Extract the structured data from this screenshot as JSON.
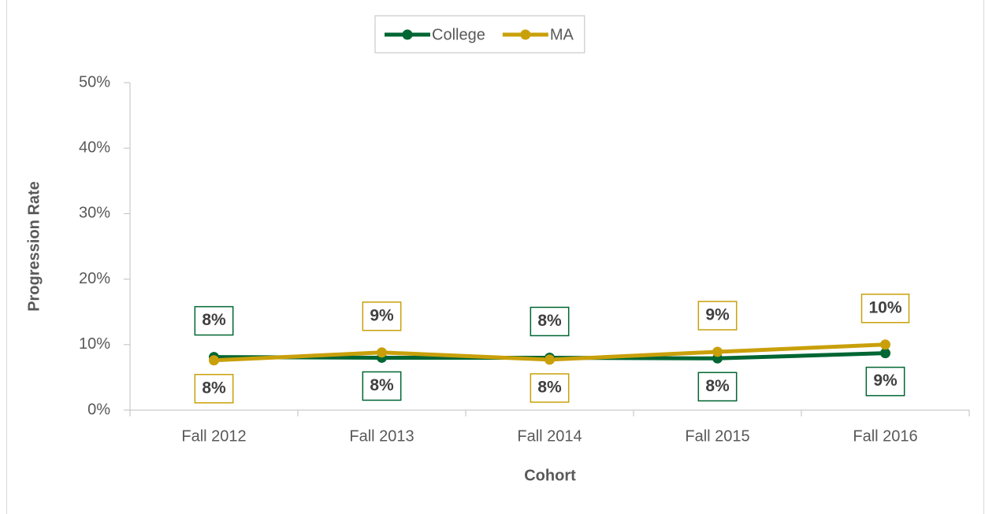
{
  "chart_data": {
    "type": "line",
    "categories": [
      "Fall 2012",
      "Fall 2013",
      "Fall 2014",
      "Fall 2015",
      "Fall 2016"
    ],
    "series": [
      {
        "name": "College",
        "color": "#006633",
        "values": [
          8.1,
          8.0,
          8.0,
          7.9,
          8.7
        ],
        "value_labels": [
          "8%",
          "8%",
          "8%",
          "8%",
          "9%"
        ]
      },
      {
        "name": "MA",
        "color": "#c9a00a",
        "values": [
          7.6,
          8.8,
          7.7,
          8.9,
          10.0
        ],
        "value_labels": [
          "8%",
          "9%",
          "8%",
          "9%",
          "10%"
        ]
      }
    ],
    "ylim": [
      0,
      50
    ],
    "yticks": [
      {
        "value": 0,
        "label": "0%"
      },
      {
        "value": 10,
        "label": "10%"
      },
      {
        "value": 20,
        "label": "20%"
      },
      {
        "value": 30,
        "label": "30%"
      },
      {
        "value": 40,
        "label": "40%"
      },
      {
        "value": 50,
        "label": "50%"
      }
    ],
    "xlabel": "Cohort",
    "ylabel": "Progression Rate",
    "legend": "top"
  }
}
